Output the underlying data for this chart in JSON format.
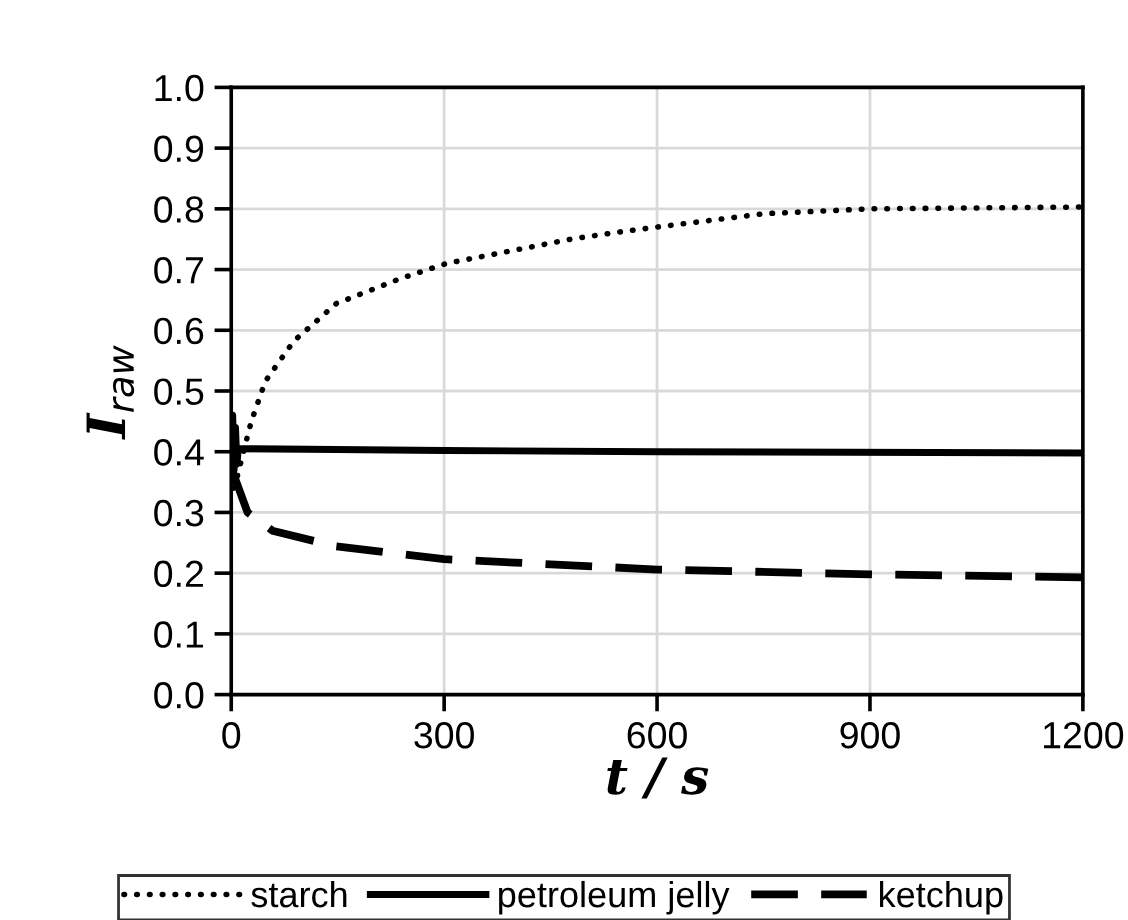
{
  "chart_data": {
    "type": "line",
    "xlabel": "t / s",
    "ylabel": "I$_{raw}$",
    "xlim": [
      0,
      1200
    ],
    "xticks": [
      0,
      300,
      600,
      900,
      1200
    ],
    "ylim": [
      0,
      1
    ],
    "yticks": [
      {
        "value": 0,
        "label": "0.0"
      },
      {
        "value": 0.1,
        "label": "0.1"
      },
      {
        "value": 0.2,
        "label": "0.2"
      },
      {
        "value": 0.3,
        "label": "0.3"
      },
      {
        "value": 0.4,
        "label": "0.4"
      },
      {
        "value": 0.5,
        "label": "0.5"
      },
      {
        "value": 0.6,
        "label": "0.6"
      },
      {
        "value": 0.7,
        "label": "0.7"
      },
      {
        "value": 0.8,
        "label": "0.8"
      },
      {
        "value": 0.9,
        "label": "0.9"
      },
      {
        "value": 1,
        "label": "1.0"
      }
    ],
    "grid": true,
    "legend": "bottom",
    "series": [
      {
        "name": "starch",
        "color": "#000000",
        "line_style": "dotted",
        "x": [
          3,
          8,
          28,
          48,
          88,
          148,
          238,
          303,
          483,
          548,
          600,
          751,
          900,
          1200
        ],
        "values": [
          0.34,
          0.357,
          0.449,
          0.516,
          0.582,
          0.644,
          0.685,
          0.71,
          0.751,
          0.762,
          0.77,
          0.792,
          0.8,
          0.803
        ]
      },
      {
        "name": "petroleum jelly",
        "color": "#000000",
        "line_style": "solid",
        "x": [
          0,
          2,
          4,
          6,
          8,
          10,
          300,
          600,
          1200
        ],
        "values": [
          0.4,
          0.46,
          0.37,
          0.44,
          0.38,
          0.405,
          0.402,
          0.4,
          0.398
        ]
      },
      {
        "name": "ketchup",
        "color": "#000000",
        "line_style": "dashed",
        "x": [
          2,
          23,
          58,
          148,
          300,
          600,
          900,
          1200
        ],
        "values": [
          0.367,
          0.3,
          0.27,
          0.244,
          0.223,
          0.206,
          0.198,
          0.193
        ]
      }
    ]
  }
}
